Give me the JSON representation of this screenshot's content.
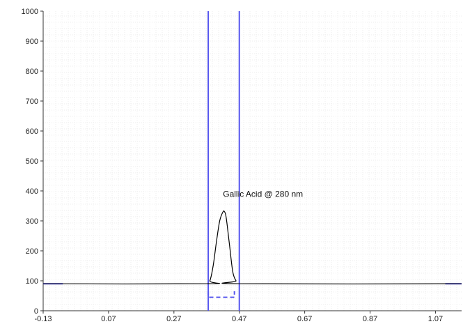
{
  "chart_data": {
    "type": "line",
    "title": "",
    "xlabel": "",
    "ylabel": "",
    "xlim": [
      -0.13,
      1.15
    ],
    "ylim": [
      0,
      1000
    ],
    "x_ticks": [
      -0.13,
      0.07,
      0.27,
      0.47,
      0.67,
      0.87,
      1.07
    ],
    "x_tick_labels": [
      "-0.13",
      "0.07",
      "0.27",
      "0.47",
      "0.67",
      "0.87",
      "1.07"
    ],
    "y_ticks": [
      0,
      100,
      200,
      300,
      400,
      500,
      600,
      700,
      800,
      900,
      1000
    ],
    "y_tick_labels": [
      "0",
      "100",
      "200",
      "300",
      "400",
      "500",
      "600",
      "700",
      "800",
      "900",
      "1000"
    ],
    "grid": true,
    "series": [
      {
        "x": [
          -0.13,
          0.37,
          0.38,
          0.39,
          0.4,
          0.41,
          0.42,
          0.425,
          0.43,
          0.44,
          0.45,
          0.46,
          0.47,
          1.15
        ],
        "y": [
          90,
          90,
          100,
          150,
          230,
          300,
          330,
          330,
          310,
          220,
          130,
          100,
          90,
          90
        ],
        "color": "#000000"
      }
    ],
    "vertical_markers": [
      {
        "x": 0.375,
        "color": "#5555ee"
      },
      {
        "x": 0.47,
        "color": "#5555ee"
      }
    ],
    "horizontal_markers": [
      {
        "x_start": -0.13,
        "x_end": -0.07,
        "y": 90,
        "color": "#5555ee"
      },
      {
        "x_start": 1.1,
        "x_end": 1.15,
        "y": 90,
        "color": "#5555ee"
      }
    ],
    "integration_bracket": {
      "x_start": 0.375,
      "x_end": 0.455,
      "y_top": 65,
      "y_bottom": 45,
      "color": "#5555ee"
    },
    "annotations": [
      {
        "text": "Gallic Acid @ 280 nm",
        "x": 0.42,
        "y": 380
      }
    ]
  }
}
